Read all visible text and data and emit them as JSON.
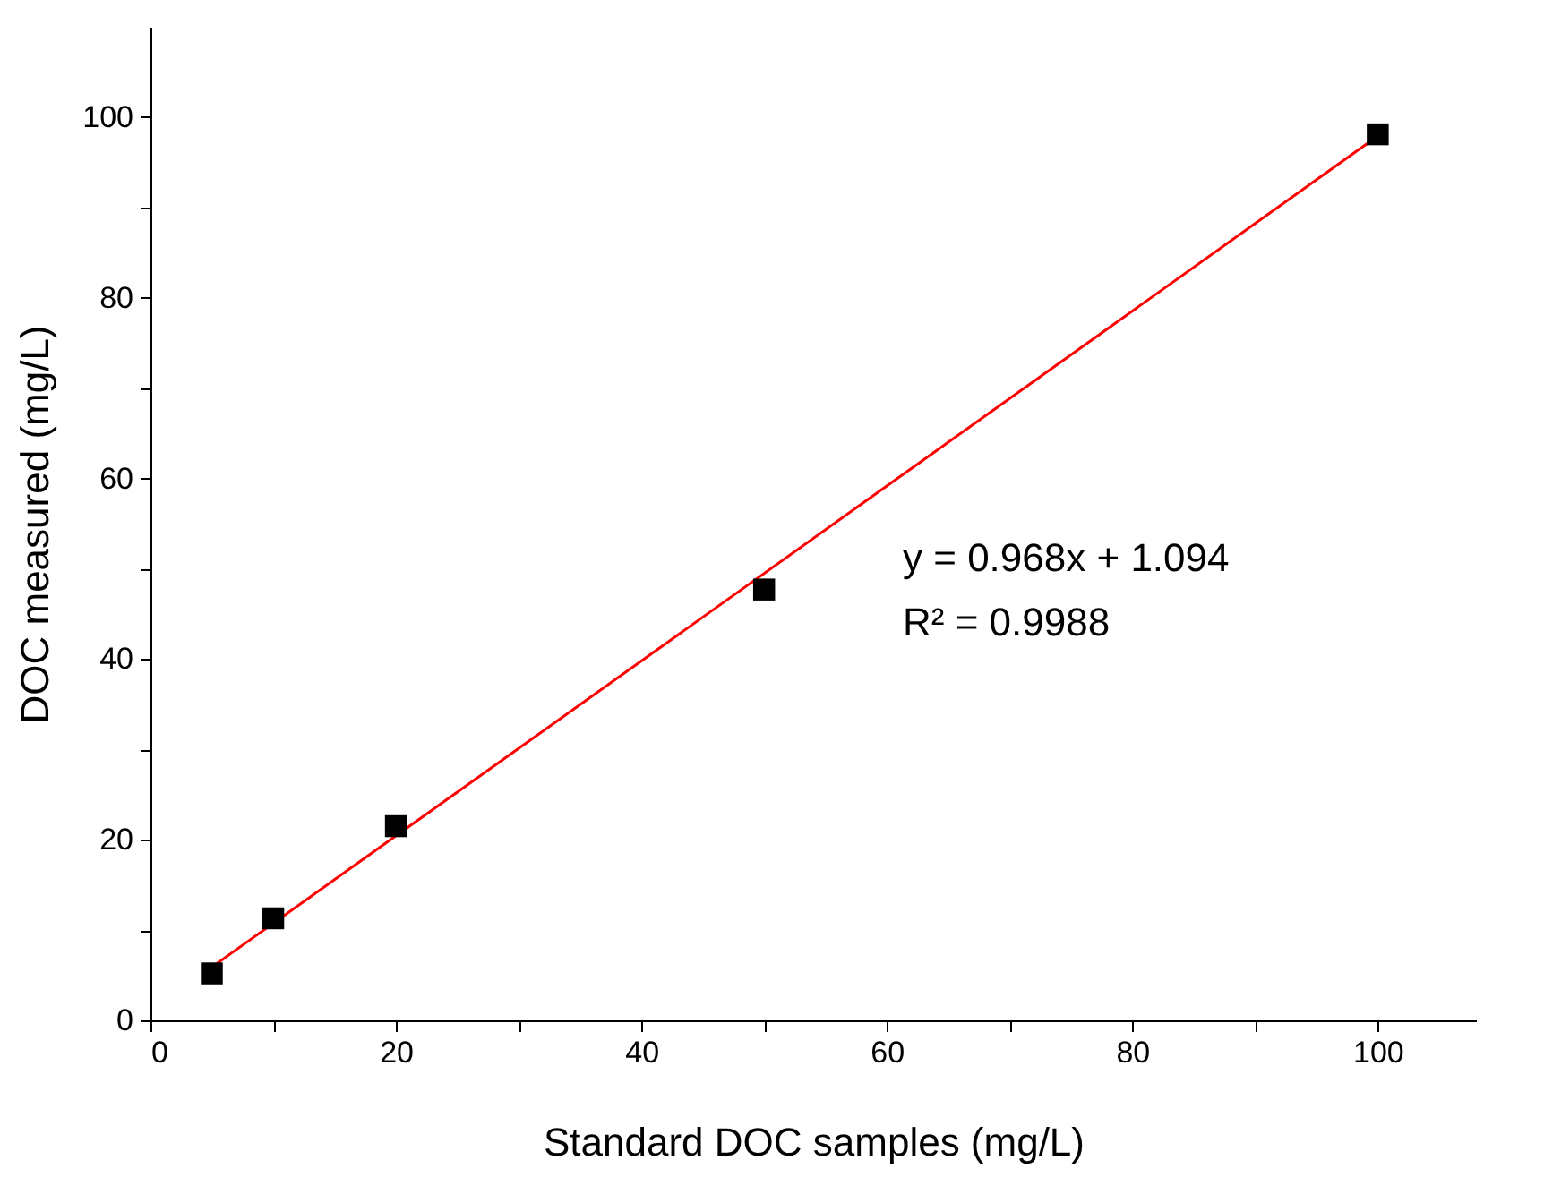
{
  "chart_data": {
    "type": "scatter",
    "xlabel": "Standard DOC samples (mg/L)",
    "ylabel": "DOC measured (mg/L)",
    "xlim": [
      0,
      108
    ],
    "ylim": [
      0,
      110
    ],
    "xticks": [
      0,
      {
        "value": 10,
        "label": null
      },
      20,
      {
        "value": 30,
        "label": null
      },
      40,
      {
        "value": 50,
        "label": null
      },
      60,
      {
        "value": 70,
        "label": null
      },
      80,
      {
        "value": 90,
        "label": null
      },
      100
    ],
    "yticks": [
      0,
      {
        "value": 10,
        "label": null
      },
      20,
      {
        "value": 30,
        "label": null
      },
      40,
      {
        "value": 50,
        "label": null
      },
      60,
      {
        "value": 70,
        "label": null
      },
      80,
      {
        "value": 90,
        "label": null
      },
      100
    ],
    "grid": false,
    "series": [
      {
        "marker": "square",
        "color": "#000000",
        "x": [
          5,
          10,
          20,
          50,
          100
        ],
        "values": [
          5.2,
          11.3,
          21.5,
          47.7,
          98.1
        ]
      },
      {
        "type": "line",
        "color": "#ff0000",
        "line_style": "solid",
        "x": [
          5,
          100
        ],
        "values": [
          5.9,
          97.9
        ]
      }
    ],
    "annotations": [
      "y = 0.968x + 1.094",
      "R² = 0.9988"
    ]
  }
}
